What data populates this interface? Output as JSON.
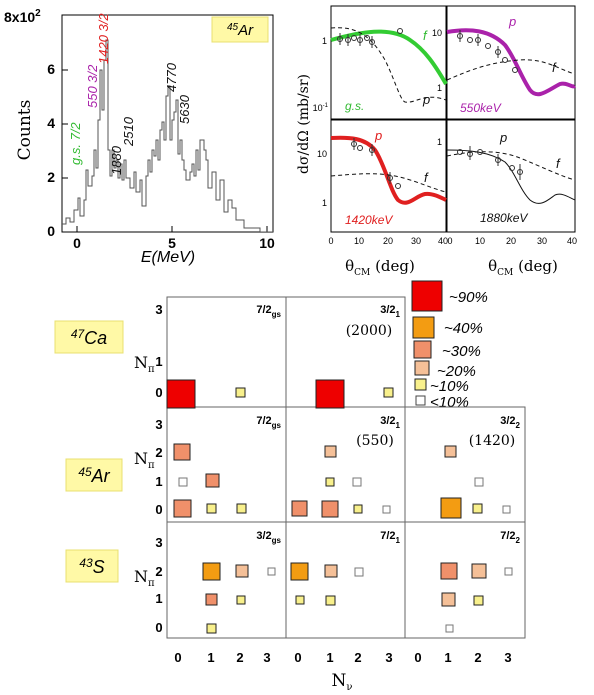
{
  "spectrum": {
    "y_exponent": "8x10",
    "y_exponent_sup": "2",
    "y_label": "Counts",
    "x_label": "E(MeV)",
    "x_ticks": [
      "0",
      "5",
      "10"
    ],
    "y_ticks": [
      "0",
      "2",
      "4",
      "6"
    ],
    "isotope": "45",
    "isotope_el": "Ar",
    "peaks": [
      {
        "label": "g.s. 7/2",
        "color": "#33bb33"
      },
      {
        "label": "550 3/2",
        "color": "#aa22aa"
      },
      {
        "label": "1420 3/2",
        "color": "#e02020"
      },
      {
        "label": "1880",
        "color": "#111111"
      },
      {
        "label": "2510",
        "color": "#111111"
      },
      {
        "label": "4770",
        "color": "#111111"
      },
      {
        "label": "5630",
        "color": "#111111"
      }
    ]
  },
  "angular": {
    "y_label": "dσ/dΩ (mb/sr)",
    "x_label": "θ",
    "x_label_sub": "CM",
    "x_label_unit": "(deg)",
    "x_ticks": [
      "0",
      "10",
      "20",
      "30",
      "40"
    ],
    "panels": [
      {
        "state": "g.s.",
        "state_color": "#33bb33",
        "fit": "p",
        "dash": "f",
        "curve_color": "#33cc33"
      },
      {
        "state": "550keV",
        "state_color": "#aa22aa",
        "fit": "p",
        "dash": "f",
        "curve_color": "#aa22aa"
      },
      {
        "state": "1420keV",
        "state_color": "#e02020",
        "fit": "p",
        "dash": "f",
        "curve_color": "#e02020"
      },
      {
        "state": "1880keV",
        "state_color": "#111111",
        "fit": "p",
        "dash": "f",
        "curve_color": "#111111"
      }
    ]
  },
  "legend": {
    "items": [
      {
        "label": "~90%",
        "color": "#ee0000"
      },
      {
        "label": "~40%",
        "color": "#f39c12"
      },
      {
        "label": "~30%",
        "color": "#f0906a"
      },
      {
        "label": "~20%",
        "color": "#f5c098"
      },
      {
        "label": "~10%",
        "color": "#f8f08c"
      },
      {
        "label": "<10%",
        "color": "#ffffff"
      }
    ]
  },
  "occupancy": {
    "y_axis": "N",
    "y_axis_sub": "π",
    "x_axis": "N",
    "x_axis_sub": "ν",
    "x_ticks": [
      "0",
      "1",
      "2",
      "3"
    ],
    "y_ticks": [
      "0",
      "1",
      "2",
      "3"
    ],
    "nuclei": [
      {
        "mass": "47",
        "el": "Ca",
        "states": [
          {
            "jp": "7/2",
            "sub": "gs",
            "energy": ""
          },
          {
            "jp": "3/2",
            "sub": "1",
            "energy": "(2000)"
          }
        ]
      },
      {
        "mass": "45",
        "el": "Ar",
        "states": [
          {
            "jp": "7/2",
            "sub": "gs",
            "energy": ""
          },
          {
            "jp": "3/2",
            "sub": "1",
            "energy": "(550)"
          },
          {
            "jp": "3/2",
            "sub": "2",
            "energy": "(1420)"
          }
        ]
      },
      {
        "mass": "43",
        "el": "S",
        "states": [
          {
            "jp": "3/2",
            "sub": "gs",
            "energy": ""
          },
          {
            "jp": "7/2",
            "sub": "1",
            "energy": ""
          },
          {
            "jp": "7/2",
            "sub": "2",
            "energy": ""
          }
        ]
      }
    ]
  }
}
